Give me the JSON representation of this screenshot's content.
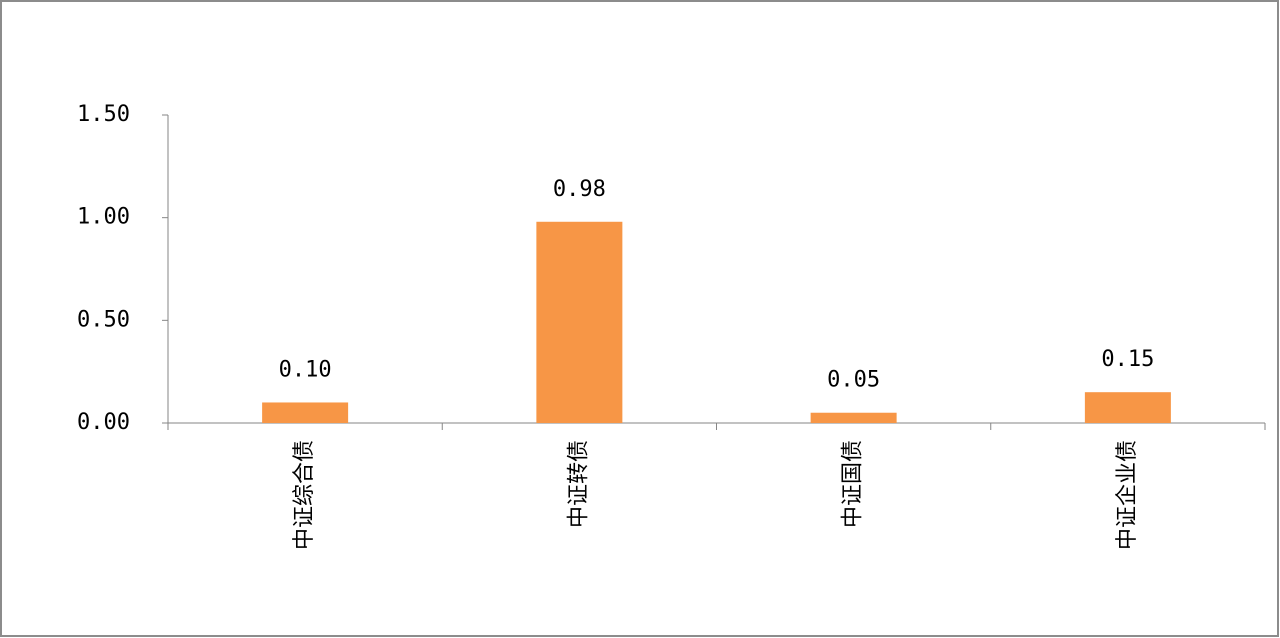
{
  "chart_data": {
    "type": "bar",
    "categories": [
      "中证综合债",
      "中证转债",
      "中证国债",
      "中证企业债"
    ],
    "values": [
      0.1,
      0.98,
      0.05,
      0.15
    ],
    "value_labels": [
      "0.10",
      "0.98",
      "0.05",
      "0.15"
    ],
    "color": "#f79646",
    "ylim": [
      0,
      1.5
    ],
    "yticks": [
      {
        "value": 0,
        "label": "0.00"
      },
      {
        "value": 0.5,
        "label": "0.50"
      },
      {
        "value": 1,
        "label": "1.00"
      },
      {
        "value": 1.5,
        "label": "1.50"
      }
    ],
    "grid": false
  }
}
